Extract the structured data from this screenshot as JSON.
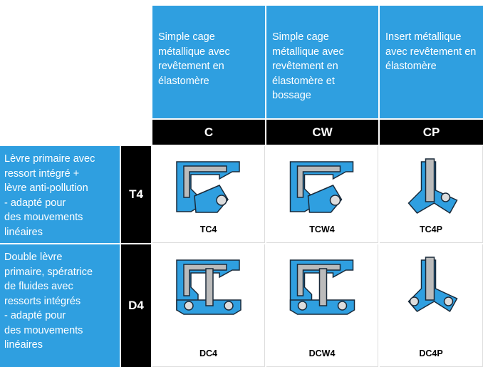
{
  "columns": [
    {
      "description": [
        "Simple cage",
        "métallique avec",
        "revêtement en",
        "élastomère"
      ],
      "code": "C"
    },
    {
      "description": [
        "Simple cage",
        "métallique avec",
        "revêtement en",
        "élastomère et",
        "bossage"
      ],
      "code": "CW"
    },
    {
      "description": [
        "Insert métallique",
        "avec revêtement en",
        "élastomère"
      ],
      "code": "CP"
    }
  ],
  "rows": [
    {
      "description": [
        "Lèvre primaire avec",
        "ressort intégré +",
        "lèvre anti-pollution",
        "- adapté pour",
        "des mouvements",
        "linéaires"
      ],
      "code": "T4",
      "items": [
        "TC4",
        "TCW4",
        "TC4P"
      ]
    },
    {
      "description": [
        "Double lèvre",
        "primaire, spératrice",
        "de fluides avec",
        "ressorts intégrés",
        "- adapté pour",
        "des mouvements",
        "linéaires"
      ],
      "code": "D4",
      "items": [
        "DC4",
        "DCW4",
        "DC4P"
      ]
    }
  ]
}
